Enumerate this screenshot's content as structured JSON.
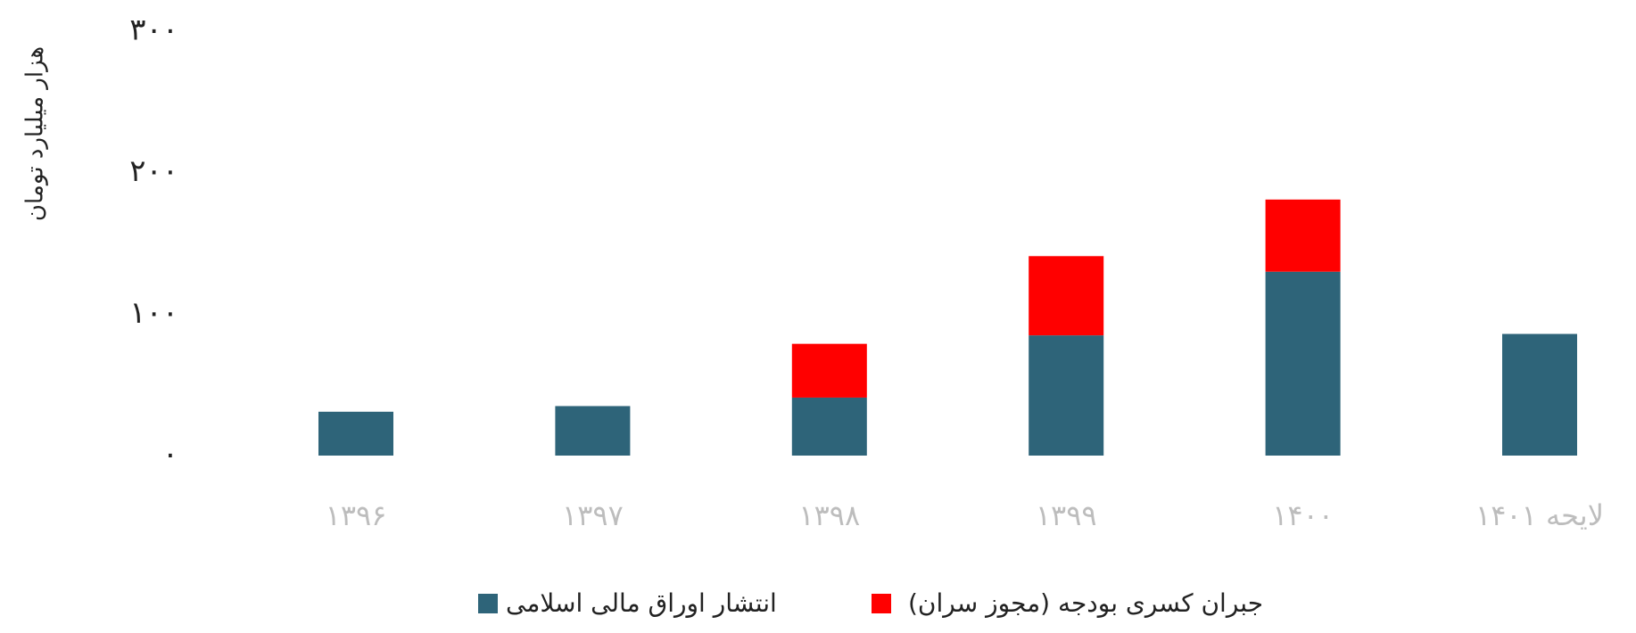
{
  "chart_data": {
    "type": "stacked_bar",
    "y_label": "هزار میلیارد تومان",
    "categories": [
      "۱۳۹۶",
      "۱۳۹۷",
      "۱۳۹۸",
      "۱۳۹۹",
      "۱۴۰۰",
      "لایحه ۱۴۰۱"
    ],
    "series": [
      {
        "name": "انتشار اوراق مالی اسلامی",
        "color": "#2e6479",
        "values": [
          31,
          35,
          41,
          85,
          130,
          86
        ]
      },
      {
        "name": "جبران کسری بودجه (مجوز سران)",
        "color": "#ff0000",
        "values": [
          null,
          null,
          38,
          56,
          51,
          null
        ]
      }
    ],
    "ylim": [
      0,
      300
    ],
    "yticks": [
      {
        "value": 0,
        "label": "۰"
      },
      {
        "value": 100,
        "label": "۱۰۰"
      },
      {
        "value": 200,
        "label": "۲۰۰"
      },
      {
        "value": 300,
        "label": "۳۰۰"
      }
    ],
    "grid": false,
    "legend": "bottom"
  }
}
